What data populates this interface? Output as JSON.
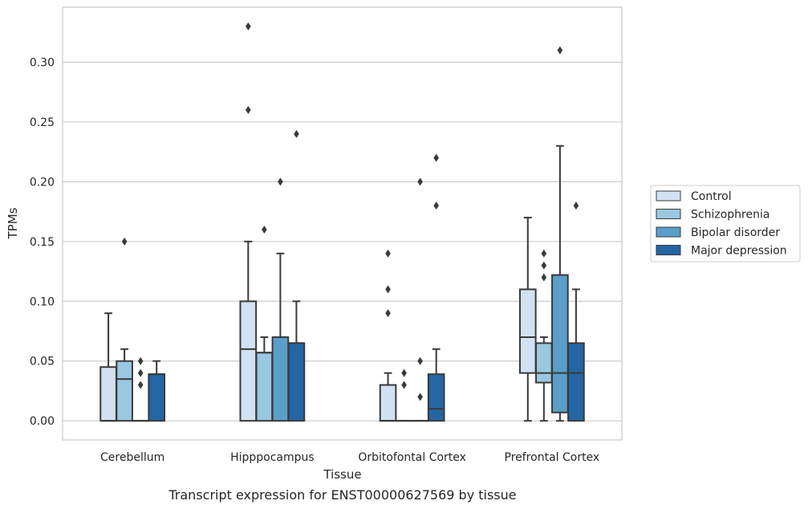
{
  "colors": {
    "background": "#ffffff",
    "grid": "#cccccc",
    "frame": "#cccccc",
    "box_edge": "#3a3a3a",
    "outlier": "#3a3a3a",
    "text": "#262626"
  },
  "chart_data": {
    "type": "box",
    "xlabel": "Tissue",
    "ylabel": "TPMs",
    "caption": "Transcript expression for ENST00000627569 by tissue",
    "ylim": [
      -0.016,
      0.346
    ],
    "yticks": [
      "0.00",
      "0.05",
      "0.10",
      "0.15",
      "0.20",
      "0.25",
      "0.30"
    ],
    "grid": true,
    "legend_position": "right",
    "categories": [
      "Cerebellum",
      "Hipppocampus",
      "Orbitofontal Cortex",
      "Prefrontal Cortex"
    ],
    "series": [
      {
        "name": "Control",
        "color": "#d1e2f2",
        "boxes": [
          {
            "whisker_low": 0,
            "q1": 0,
            "median": 0,
            "q3": 0.045,
            "whisker_high": 0.09,
            "outliers": []
          },
          {
            "whisker_low": 0,
            "q1": 0,
            "median": 0.06,
            "q3": 0.1,
            "whisker_high": 0.15,
            "outliers": [
              0.26,
              0.33
            ]
          },
          {
            "whisker_low": 0,
            "q1": 0,
            "median": 0,
            "q3": 0.03,
            "whisker_high": 0.04,
            "outliers": [
              0.09,
              0.11,
              0.14
            ]
          },
          {
            "whisker_low": 0,
            "q1": 0.04,
            "median": 0.07,
            "q3": 0.11,
            "whisker_high": 0.17,
            "outliers": []
          }
        ]
      },
      {
        "name": "Schizophrenia",
        "color": "#9ac8e0",
        "boxes": [
          {
            "whisker_low": 0,
            "q1": 0,
            "median": 0.035,
            "q3": 0.05,
            "whisker_high": 0.06,
            "outliers": [
              0.15
            ]
          },
          {
            "whisker_low": 0,
            "q1": 0,
            "median": 0.057,
            "q3": 0.057,
            "whisker_high": 0.07,
            "outliers": [
              0.16
            ]
          },
          {
            "whisker_low": 0,
            "q1": 0,
            "median": 0,
            "q3": 0,
            "whisker_high": 0,
            "outliers": [
              0.03,
              0.04
            ]
          },
          {
            "whisker_low": 0,
            "q1": 0.032,
            "median": 0.04,
            "q3": 0.065,
            "whisker_high": 0.07,
            "outliers": [
              0.12,
              0.13,
              0.14
            ]
          }
        ]
      },
      {
        "name": "Bipolar disorder",
        "color": "#5a9ec9",
        "boxes": [
          {
            "whisker_low": 0,
            "q1": 0,
            "median": 0,
            "q3": 0,
            "whisker_high": 0,
            "outliers": [
              0.03,
              0.04,
              0.05
            ]
          },
          {
            "whisker_low": 0,
            "q1": 0,
            "median": 0.07,
            "q3": 0.07,
            "whisker_high": 0.14,
            "outliers": [
              0.2
            ]
          },
          {
            "whisker_low": 0,
            "q1": 0,
            "median": 0,
            "q3": 0,
            "whisker_high": 0,
            "outliers": [
              0.02,
              0.05,
              0.2
            ]
          },
          {
            "whisker_low": 0,
            "q1": 0.007,
            "median": 0.04,
            "q3": 0.122,
            "whisker_high": 0.23,
            "outliers": [
              0.31
            ]
          }
        ]
      },
      {
        "name": "Major depression",
        "color": "#2465a6",
        "boxes": [
          {
            "whisker_low": 0,
            "q1": 0,
            "median": 0.039,
            "q3": 0.039,
            "whisker_high": 0.05,
            "outliers": []
          },
          {
            "whisker_low": 0,
            "q1": 0,
            "median": 0.065,
            "q3": 0.065,
            "whisker_high": 0.1,
            "outliers": [
              0.24
            ]
          },
          {
            "whisker_low": 0,
            "q1": 0,
            "median": 0.01,
            "q3": 0.039,
            "whisker_high": 0.06,
            "outliers": [
              0.18,
              0.22
            ]
          },
          {
            "whisker_low": 0,
            "q1": 0,
            "median": 0.04,
            "q3": 0.065,
            "whisker_high": 0.11,
            "outliers": [
              0.18
            ]
          }
        ]
      }
    ]
  }
}
